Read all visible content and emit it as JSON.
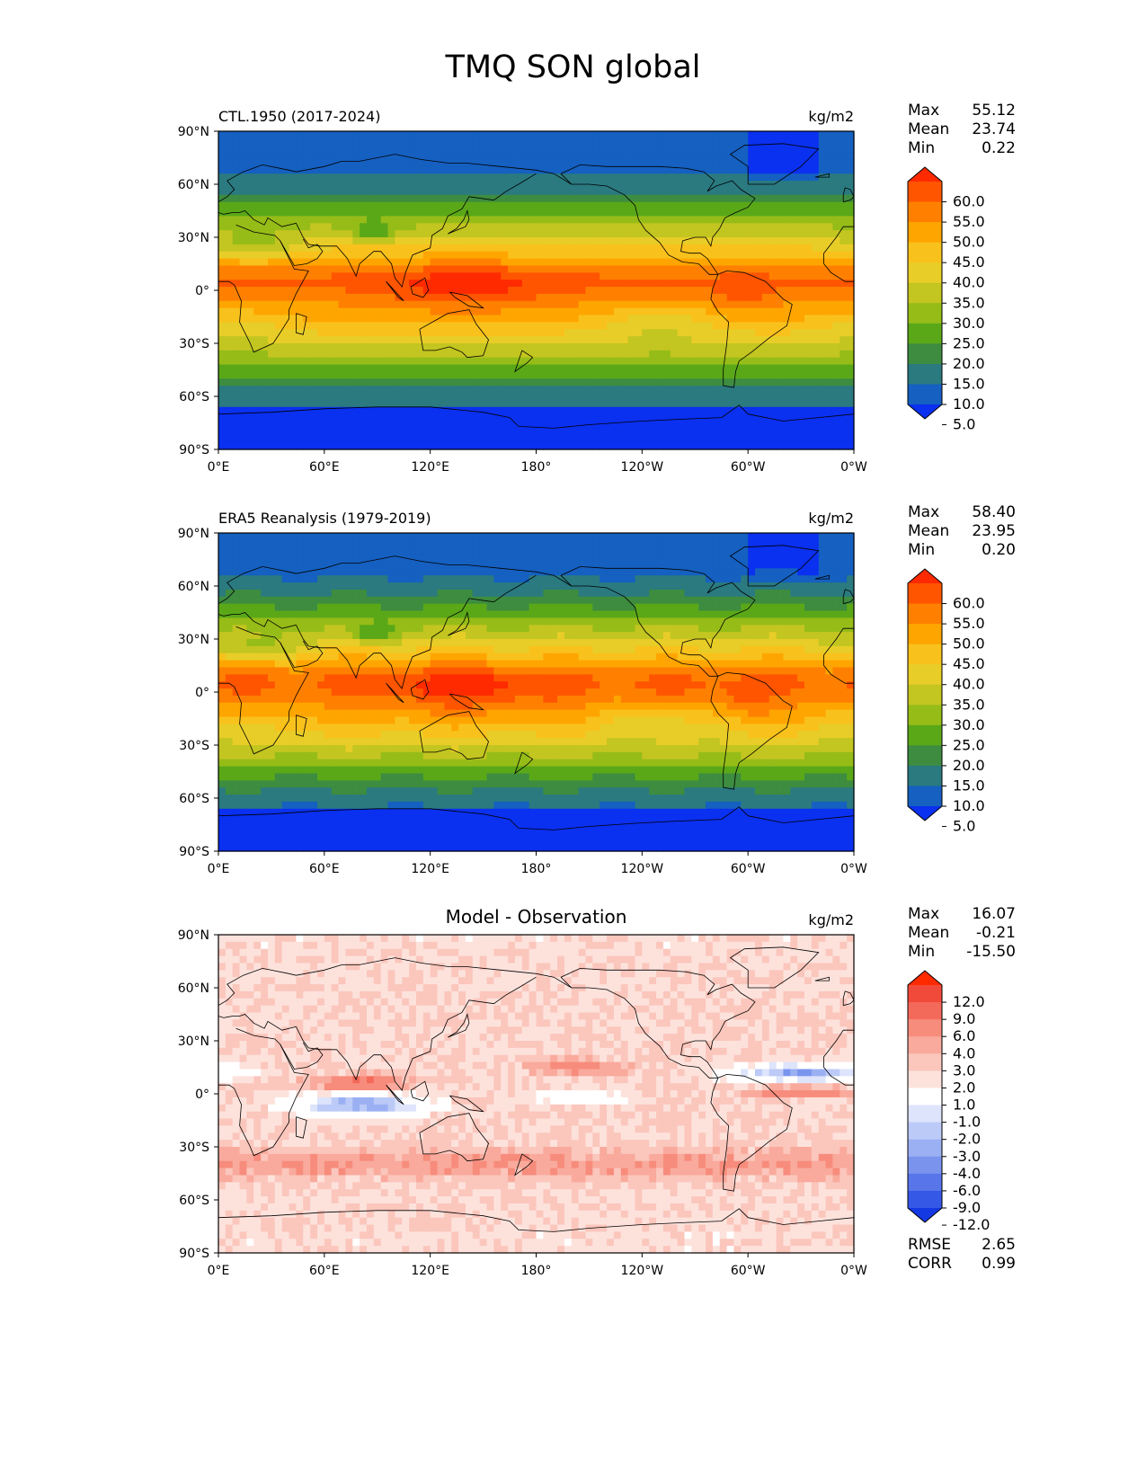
{
  "figure": {
    "title": "TMQ SON global",
    "lat_ticks": [
      "90°N",
      "60°N",
      "30°N",
      "0°",
      "30°S",
      "60°S",
      "90°S"
    ],
    "lon_ticks": [
      "0°E",
      "60°E",
      "120°E",
      "180°",
      "120°W",
      "60°W",
      "0°W"
    ]
  },
  "chart_data": [
    {
      "type": "heatmap",
      "title": "",
      "subtitle": "CTL.1950 (2017-2024)",
      "units": "kg/m2",
      "stats": [
        {
          "label": "Max",
          "value": "55.12"
        },
        {
          "label": "Mean",
          "value": "23.74"
        },
        {
          "label": "Min",
          "value": "0.22"
        }
      ],
      "colorbar": {
        "labels": [
          "60.0",
          "55.0",
          "50.0",
          "45.0",
          "40.0",
          "35.0",
          "30.0",
          "25.0",
          "20.0",
          "15.0",
          "10.0",
          "5.0"
        ],
        "colors": [
          "#ff2a00",
          "#ff5500",
          "#ff8000",
          "#ffa500",
          "#f9c11c",
          "#e8cd28",
          "#c3c520",
          "#96bc18",
          "#5aa818",
          "#3d8c40",
          "#2a7a80",
          "#1560c0",
          "#0a30f0"
        ]
      },
      "range": [
        0,
        60
      ]
    },
    {
      "type": "heatmap",
      "title": "",
      "subtitle": "ERA5 Reanalysis (1979-2019)",
      "units": "kg/m2",
      "stats": [
        {
          "label": "Max",
          "value": "58.40"
        },
        {
          "label": "Mean",
          "value": "23.95"
        },
        {
          "label": "Min",
          "value": "0.20"
        }
      ],
      "colorbar": {
        "labels": [
          "60.0",
          "55.0",
          "50.0",
          "45.0",
          "40.0",
          "35.0",
          "30.0",
          "25.0",
          "20.0",
          "15.0",
          "10.0",
          "5.0"
        ],
        "colors": [
          "#ff2a00",
          "#ff5500",
          "#ff8000",
          "#ffa500",
          "#f9c11c",
          "#e8cd28",
          "#c3c520",
          "#96bc18",
          "#5aa818",
          "#3d8c40",
          "#2a7a80",
          "#1560c0",
          "#0a30f0"
        ]
      },
      "range": [
        0,
        60
      ]
    },
    {
      "type": "heatmap",
      "title": "Model - Observation",
      "subtitle": "",
      "units": "kg/m2",
      "stats": [
        {
          "label": "Max",
          "value": "16.07"
        },
        {
          "label": "Mean",
          "value": "-0.21"
        },
        {
          "label": "Min",
          "value": "-15.50"
        }
      ],
      "extra_stats": [
        {
          "label": "RMSE",
          "value": "2.65"
        },
        {
          "label": "CORR",
          "value": "0.99"
        }
      ],
      "colorbar": {
        "labels": [
          "12.0",
          "9.0",
          "6.0",
          "4.0",
          "3.0",
          "2.0",
          "1.0",
          "-1.0",
          "-2.0",
          "-3.0",
          "-4.0",
          "-6.0",
          "-9.0",
          "-12.0"
        ],
        "colors": [
          "#ff2a00",
          "#f24a3a",
          "#f46a5a",
          "#f78c7c",
          "#f9aa9c",
          "#fbc6bc",
          "#fde2dc",
          "#ffffff",
          "#dde4fb",
          "#bccaf7",
          "#9bb0f3",
          "#7a94ee",
          "#5876ea",
          "#3658e6",
          "#1438e2"
        ]
      },
      "range": [
        -15,
        15
      ]
    }
  ]
}
